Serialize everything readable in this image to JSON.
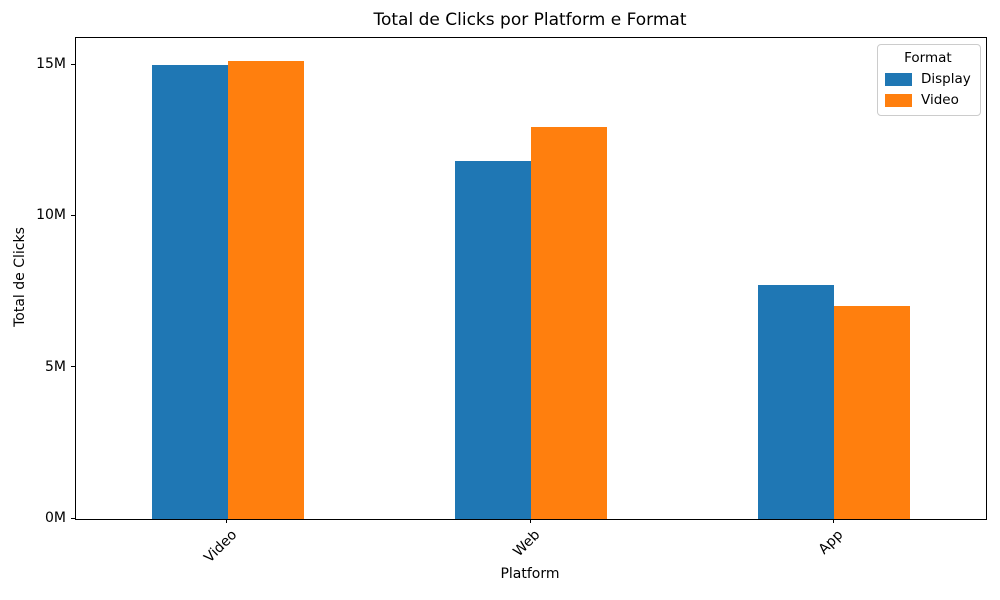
{
  "chart_data": {
    "type": "bar",
    "title": "Total de Clicks por Platform e Format",
    "xlabel": "Platform",
    "ylabel": "Total de Clicks",
    "categories": [
      "Video",
      "Web",
      "App"
    ],
    "series": [
      {
        "name": "Display",
        "color": "#1f77b4",
        "values_millions": [
          15.0,
          11.85,
          7.75
        ]
      },
      {
        "name": "Video",
        "color": "#ff7f0e",
        "values_millions": [
          15.15,
          12.95,
          7.05
        ]
      }
    ],
    "y_ticks": [
      {
        "value": 0,
        "label": "0M"
      },
      {
        "value": 5,
        "label": "5M"
      },
      {
        "value": 10,
        "label": "10M"
      },
      {
        "value": 15,
        "label": "15M"
      }
    ],
    "ylim": [
      0,
      15.9
    ],
    "x_tick_rotation_deg": 45,
    "grid": false,
    "legend": {
      "title": "Format",
      "position": "upper right"
    }
  }
}
